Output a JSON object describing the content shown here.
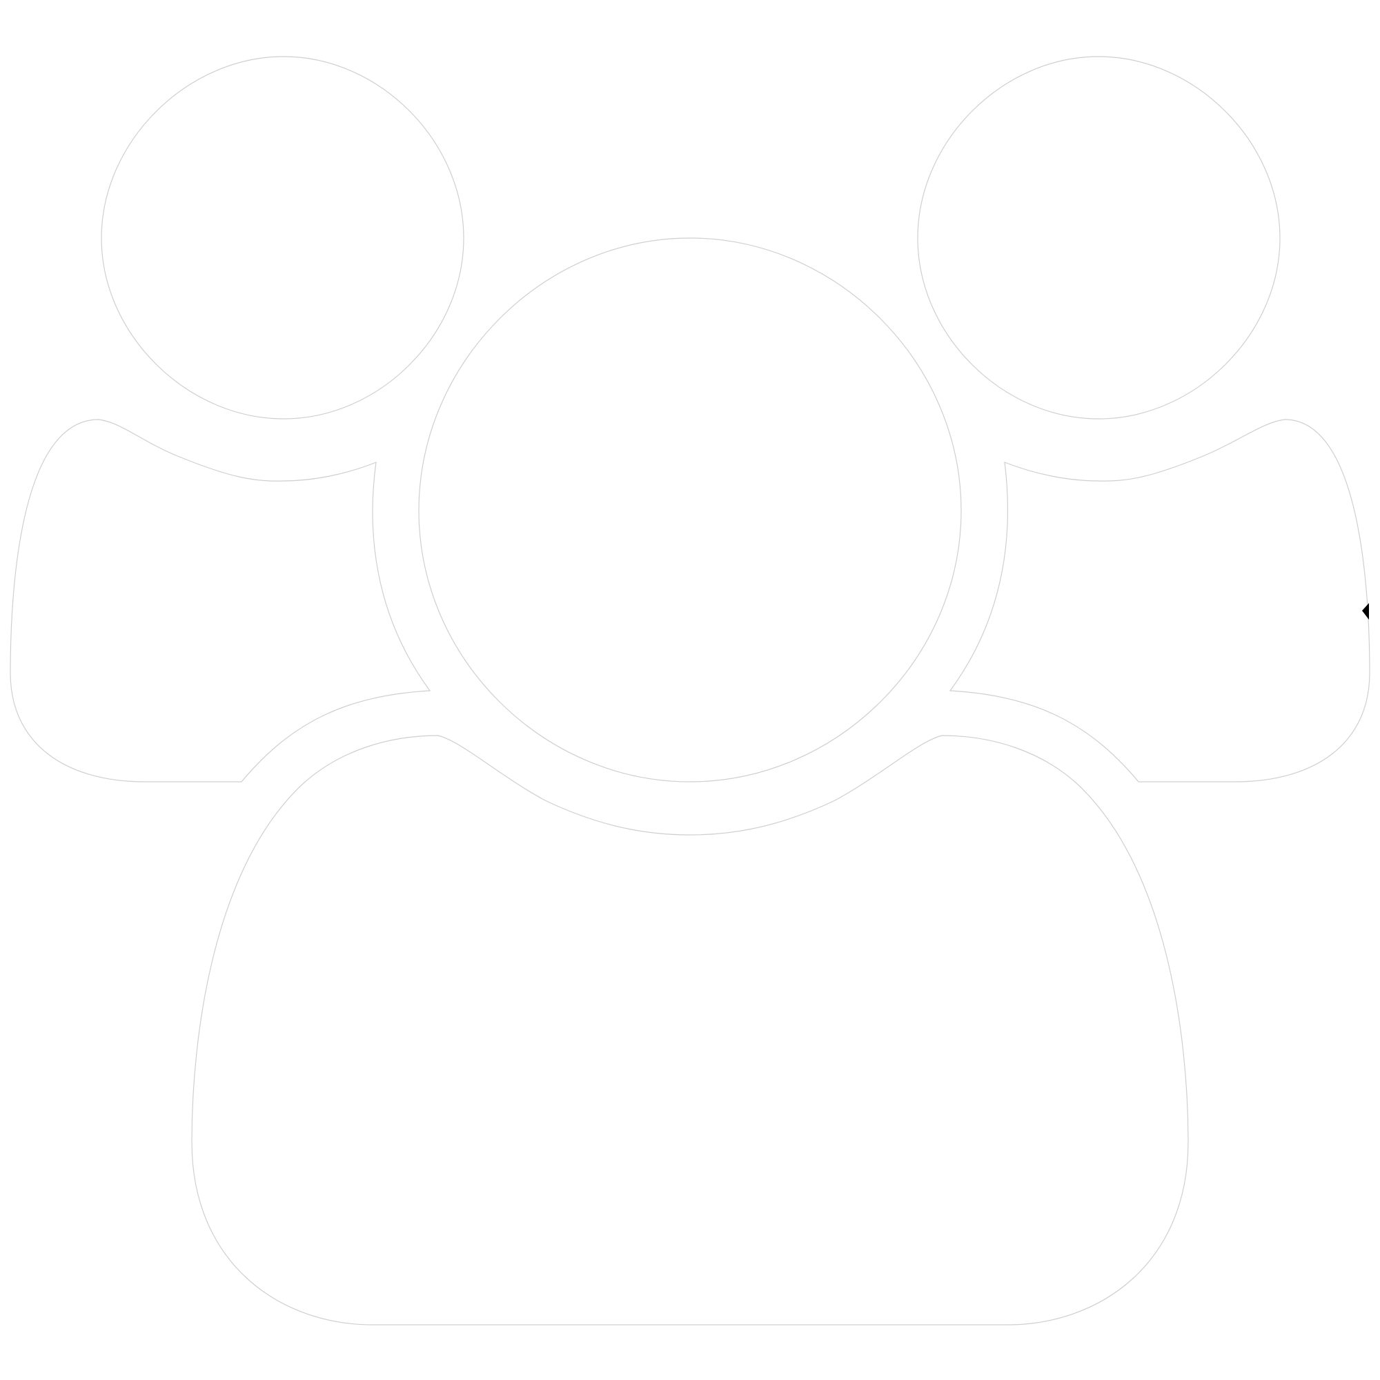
{
  "icon": {
    "name": "users-group-icon",
    "fill_color": "#ffffff",
    "outline_color": "#cfcfcf",
    "marker_color": "#000000"
  }
}
